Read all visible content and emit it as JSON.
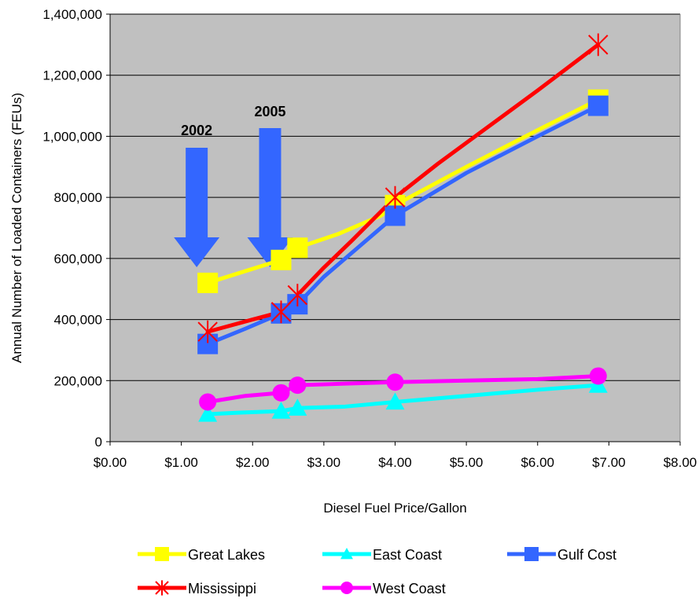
{
  "chart_data": {
    "type": "line",
    "title": "",
    "xlabel": "Diesel Fuel Price/Gallon",
    "ylabel": "Annual Number of Loaded Containers (FEUs)",
    "xlim": [
      0,
      8
    ],
    "ylim": [
      0,
      1400000
    ],
    "x_ticks": [
      0,
      1,
      2,
      3,
      4,
      5,
      6,
      7,
      8
    ],
    "x_tick_labels": [
      "$0.00",
      "$1.00",
      "$2.00",
      "$3.00",
      "$4.00",
      "$5.00",
      "$6.00",
      "$7.00",
      "$8.00"
    ],
    "y_ticks": [
      0,
      200000,
      400000,
      600000,
      800000,
      1000000,
      1200000,
      1400000
    ],
    "y_tick_labels": [
      "0",
      "200,000",
      "400,000",
      "600,000",
      "800,000",
      "1,000,000",
      "1,200,000",
      "1,400,000"
    ],
    "grid": true,
    "plot_background": "#c0c0c0",
    "legend_position": "bottom",
    "series": [
      {
        "name": "Great Lakes",
        "color": "#ffff00",
        "marker": "square",
        "x": [
          1.37,
          2.4,
          2.63,
          3.2,
          3.8,
          4.0,
          5.0,
          6.0,
          6.85
        ],
        "y": [
          520000,
          595000,
          635000,
          680000,
          740000,
          775000,
          900000,
          1020000,
          1120000
        ]
      },
      {
        "name": "East Coast",
        "color": "#00ffff",
        "marker": "triangle",
        "x": [
          1.37,
          1.8,
          2.4,
          2.63,
          3.3,
          4.0,
          5.0,
          6.0,
          6.85
        ],
        "y": [
          90000,
          95000,
          100000,
          110000,
          115000,
          130000,
          150000,
          170000,
          185000
        ]
      },
      {
        "name": "Gulf Cost",
        "color": "#3366ff",
        "marker": "square",
        "x": [
          1.37,
          1.9,
          2.4,
          2.63,
          3.0,
          3.4,
          4.0,
          5.0,
          6.0,
          6.85
        ],
        "y": [
          320000,
          370000,
          420000,
          450000,
          540000,
          620000,
          740000,
          880000,
          1000000,
          1100000
        ]
      },
      {
        "name": "Mississippi",
        "color": "#ff0000",
        "marker": "star",
        "x": [
          1.37,
          2.0,
          2.4,
          2.63,
          3.0,
          3.4,
          4.0,
          4.6,
          5.3,
          6.0,
          6.85
        ],
        "y": [
          360000,
          400000,
          425000,
          480000,
          570000,
          660000,
          800000,
          910000,
          1030000,
          1150000,
          1300000
        ]
      },
      {
        "name": "West Coast",
        "color": "#ff00ff",
        "marker": "circle",
        "x": [
          1.37,
          1.9,
          2.4,
          2.63,
          3.3,
          4.0,
          5.0,
          6.0,
          6.85
        ],
        "y": [
          130000,
          150000,
          160000,
          185000,
          190000,
          195000,
          200000,
          205000,
          215000
        ]
      }
    ],
    "annotations": [
      {
        "text": "2002",
        "x": 1.37
      },
      {
        "text": "2005",
        "x": 2.4
      }
    ]
  }
}
